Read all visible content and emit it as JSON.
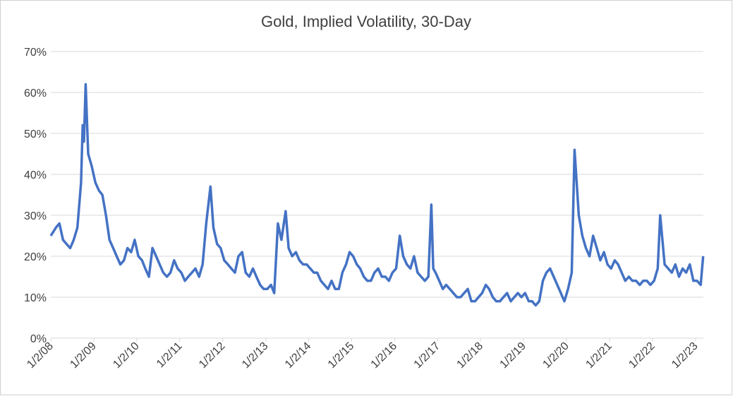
{
  "chart_data": {
    "type": "line",
    "title": "Gold, Implied Volatility, 30-Day",
    "x": [
      "2008-01-02",
      "2008-02-15",
      "2008-03-15",
      "2008-04-15",
      "2008-05-15",
      "2008-06-15",
      "2008-07-15",
      "2008-08-15",
      "2008-09-15",
      "2008-09-29",
      "2008-10-10",
      "2008-10-24",
      "2008-11-15",
      "2008-12-15",
      "2009-01-15",
      "2009-02-15",
      "2009-03-15",
      "2009-04-15",
      "2009-05-15",
      "2009-06-15",
      "2009-07-15",
      "2009-08-15",
      "2009-09-15",
      "2009-10-15",
      "2009-11-15",
      "2009-12-15",
      "2010-01-15",
      "2010-02-15",
      "2010-03-15",
      "2010-04-15",
      "2010-05-15",
      "2010-06-15",
      "2010-07-15",
      "2010-08-15",
      "2010-09-15",
      "2010-10-15",
      "2010-11-15",
      "2010-12-15",
      "2011-01-15",
      "2011-02-15",
      "2011-03-15",
      "2011-04-15",
      "2011-05-15",
      "2011-06-15",
      "2011-07-15",
      "2011-08-15",
      "2011-09-20",
      "2011-10-15",
      "2011-11-15",
      "2011-12-15",
      "2012-01-15",
      "2012-02-15",
      "2012-03-15",
      "2012-04-15",
      "2012-05-15",
      "2012-06-15",
      "2012-07-15",
      "2012-08-15",
      "2012-09-15",
      "2012-10-15",
      "2012-11-15",
      "2012-12-15",
      "2013-01-15",
      "2013-02-15",
      "2013-03-15",
      "2013-04-15",
      "2013-05-15",
      "2013-06-20",
      "2013-07-15",
      "2013-08-15",
      "2013-09-15",
      "2013-10-15",
      "2013-11-15",
      "2013-12-15",
      "2014-01-15",
      "2014-02-15",
      "2014-03-15",
      "2014-04-15",
      "2014-05-15",
      "2014-06-15",
      "2014-07-15",
      "2014-08-15",
      "2014-09-15",
      "2014-10-15",
      "2014-11-15",
      "2014-12-15",
      "2015-01-15",
      "2015-02-15",
      "2015-03-15",
      "2015-04-15",
      "2015-05-15",
      "2015-06-15",
      "2015-07-15",
      "2015-08-15",
      "2015-09-15",
      "2015-10-15",
      "2015-11-15",
      "2015-12-15",
      "2016-01-15",
      "2016-02-15",
      "2016-03-15",
      "2016-04-15",
      "2016-05-15",
      "2016-06-15",
      "2016-07-15",
      "2016-08-15",
      "2016-09-15",
      "2016-10-15",
      "2016-11-09",
      "2016-11-25",
      "2016-12-15",
      "2017-01-15",
      "2017-02-15",
      "2017-03-15",
      "2017-04-15",
      "2017-05-15",
      "2017-06-15",
      "2017-07-15",
      "2017-08-15",
      "2017-09-15",
      "2017-10-15",
      "2017-11-15",
      "2017-12-15",
      "2018-01-15",
      "2018-02-15",
      "2018-03-15",
      "2018-04-15",
      "2018-05-15",
      "2018-06-15",
      "2018-07-15",
      "2018-08-15",
      "2018-09-15",
      "2018-10-15",
      "2018-11-15",
      "2018-12-15",
      "2019-01-15",
      "2019-02-15",
      "2019-03-15",
      "2019-04-15",
      "2019-05-15",
      "2019-06-15",
      "2019-07-15",
      "2019-08-15",
      "2019-09-15",
      "2019-10-15",
      "2019-11-15",
      "2019-12-15",
      "2020-01-15",
      "2020-02-15",
      "2020-03-10",
      "2020-04-15",
      "2020-05-15",
      "2020-06-15",
      "2020-07-15",
      "2020-08-15",
      "2020-09-15",
      "2020-10-15",
      "2020-11-15",
      "2020-12-15",
      "2021-01-15",
      "2021-02-15",
      "2021-03-15",
      "2021-04-15",
      "2021-05-15",
      "2021-06-15",
      "2021-07-15",
      "2021-08-15",
      "2021-09-15",
      "2021-10-15",
      "2021-11-15",
      "2021-12-15",
      "2022-01-15",
      "2022-02-15",
      "2022-03-08",
      "2022-04-15",
      "2022-05-15",
      "2022-06-15",
      "2022-07-15",
      "2022-08-15",
      "2022-09-15",
      "2022-10-15",
      "2022-11-15",
      "2022-12-15",
      "2023-01-15",
      "2023-02-15",
      "2023-03-08"
    ],
    "series": [
      {
        "color": "#4472c4",
        "values": [
          25,
          27,
          28,
          24,
          23,
          22,
          24,
          27,
          38,
          52,
          48,
          62,
          45,
          42,
          38,
          36,
          35,
          30,
          24,
          22,
          20,
          18,
          19,
          22,
          21,
          24,
          20,
          19,
          17,
          15,
          22,
          20,
          18,
          16,
          15,
          16,
          19,
          17,
          16,
          14,
          15,
          16,
          17,
          15,
          18,
          28,
          37,
          27,
          23,
          22,
          19,
          18,
          17,
          16,
          20,
          21,
          16,
          15,
          17,
          15,
          13,
          12,
          12,
          13,
          11,
          28,
          24,
          31,
          22,
          20,
          21,
          19,
          18,
          18,
          17,
          16,
          16,
          14,
          13,
          12,
          14,
          12,
          12,
          16,
          18,
          21,
          20,
          18,
          17,
          15,
          14,
          14,
          16,
          17,
          15,
          15,
          14,
          16,
          17,
          25,
          20,
          18,
          17,
          20,
          16,
          15,
          14,
          15,
          32.6,
          17,
          16,
          14,
          12,
          13,
          12,
          11,
          10,
          10,
          11,
          12,
          9,
          9,
          10,
          11,
          13,
          12,
          10,
          9,
          9,
          10,
          11,
          9,
          10,
          11,
          10,
          11,
          9,
          9,
          8,
          9,
          14,
          16,
          17,
          15,
          13,
          11,
          9,
          12,
          16,
          46,
          30,
          25,
          22,
          20,
          25,
          22,
          19,
          21,
          18,
          17,
          19,
          18,
          16,
          14,
          15,
          14,
          14,
          13,
          14,
          14,
          13,
          14,
          17,
          30,
          18,
          17,
          16,
          18,
          15,
          17,
          16,
          18,
          14,
          14,
          13,
          20
        ]
      }
    ],
    "xlim": [
      "2008-01-02",
      "2023-03-10"
    ],
    "xticks": [
      {
        "value": "2008-01-02",
        "label": "1/2/08"
      },
      {
        "value": "2009-01-02",
        "label": "1/2/09"
      },
      {
        "value": "2010-01-02",
        "label": "1/2/10"
      },
      {
        "value": "2011-01-02",
        "label": "1/2/11"
      },
      {
        "value": "2012-01-02",
        "label": "1/2/12"
      },
      {
        "value": "2013-01-02",
        "label": "1/2/13"
      },
      {
        "value": "2014-01-02",
        "label": "1/2/14"
      },
      {
        "value": "2015-01-02",
        "label": "1/2/15"
      },
      {
        "value": "2016-01-02",
        "label": "1/2/16"
      },
      {
        "value": "2017-01-02",
        "label": "1/2/17"
      },
      {
        "value": "2018-01-02",
        "label": "1/2/18"
      },
      {
        "value": "2019-01-02",
        "label": "1/2/19"
      },
      {
        "value": "2020-01-02",
        "label": "1/2/20"
      },
      {
        "value": "2021-01-02",
        "label": "1/2/21"
      },
      {
        "value": "2022-01-02",
        "label": "1/2/22"
      },
      {
        "value": "2023-01-02",
        "label": "1/2/23"
      }
    ],
    "ylim": [
      0,
      70
    ],
    "yticks": [
      {
        "value": 0,
        "label": "0%"
      },
      {
        "value": 10,
        "label": "10%"
      },
      {
        "value": 20,
        "label": "20%"
      },
      {
        "value": 30,
        "label": "30%"
      },
      {
        "value": 40,
        "label": "40%"
      },
      {
        "value": 50,
        "label": "50%"
      },
      {
        "value": 60,
        "label": "60%"
      },
      {
        "value": 70,
        "label": "70%"
      }
    ],
    "grid": true
  }
}
